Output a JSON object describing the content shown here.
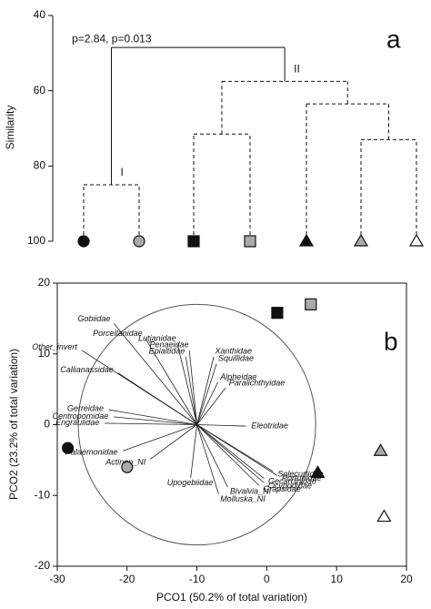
{
  "chart_data": [
    {
      "type": "dendrogram",
      "panel_label": "a",
      "y_label": "Similarity",
      "ylim": [
        40,
        100
      ],
      "y_inverted": true,
      "yticks": [
        40,
        60,
        80,
        100
      ],
      "leaves": [
        {
          "shape": "circle",
          "color": "#111111"
        },
        {
          "shape": "circle",
          "color": "#aaaaaa"
        },
        {
          "shape": "square",
          "color": "#111111"
        },
        {
          "shape": "square",
          "color": "#aaaaaa"
        },
        {
          "shape": "triangle",
          "color": "#111111"
        },
        {
          "shape": "triangle",
          "color": "#aaaaaa"
        },
        {
          "shape": "triangle",
          "color": "#ffffff"
        }
      ],
      "merges": [
        {
          "children": [
            0,
            1
          ],
          "height": 85,
          "label": "I",
          "style": "dashed"
        },
        {
          "children": [
            2,
            3
          ],
          "height": 71.5,
          "style": "dashed"
        },
        {
          "children": [
            5,
            6
          ],
          "height": 73,
          "style": "dashed"
        },
        {
          "children": [
            4,
            9
          ],
          "height": 63.5,
          "style": "dashed"
        },
        {
          "children": [
            8,
            10
          ],
          "height": 57.5,
          "label": "II",
          "style": "dashed"
        },
        {
          "children": [
            7,
            11
          ],
          "height": 48.5,
          "label": "p=2.84, p=0.013",
          "style": "solid"
        }
      ]
    },
    {
      "type": "biplot",
      "panel_label": "b",
      "x_label": "PCO1 (50.2% of total variation)",
      "y_label": "PCO2 (23.2% of total variation)",
      "xlim": [
        -30,
        20
      ],
      "ylim": [
        -20,
        20
      ],
      "xticks": [
        -30,
        -20,
        -10,
        0,
        10,
        20
      ],
      "yticks": [
        -20,
        -10,
        0,
        10,
        20
      ],
      "points": {
        "x": [
          -28.5,
          -20,
          1.5,
          6.3,
          7.3,
          16.3,
          16.8
        ],
        "y": [
          -3.3,
          -6,
          15.8,
          17,
          -6.8,
          -3.7,
          -13
        ],
        "shapes": [
          "circle",
          "circle",
          "square",
          "square",
          "triangle",
          "triangle",
          "triangle"
        ],
        "colors": [
          "#111111",
          "#aaaaaa",
          "#111111",
          "#aaaaaa",
          "#111111",
          "#aaaaaa",
          "#ffffff"
        ]
      },
      "vector_origin": [
        -10,
        0
      ],
      "circle_radius": 17,
      "vectors": [
        {
          "label": "Gobiidae",
          "x": -21.9,
          "y": 14.3
        },
        {
          "label": "Porcellanidae",
          "x": -17.4,
          "y": 12.2
        },
        {
          "label": "Lutjanidae",
          "x": -12.8,
          "y": 11.4
        },
        {
          "label": "Penaeidae",
          "x": -11.1,
          "y": 10.5
        },
        {
          "label": "Xanthidae",
          "x": -7.6,
          "y": 9.6
        },
        {
          "label": "Epialtidae",
          "x": -11.6,
          "y": 9.6
        },
        {
          "label": "Squillidae",
          "x": -7.2,
          "y": 8.6
        },
        {
          "label": "Other_invert",
          "x": -26.5,
          "y": 10.5
        },
        {
          "label": "Callianassidae",
          "x": -21.3,
          "y": 7.3
        },
        {
          "label": "Alpheidae",
          "x": -7,
          "y": 6
        },
        {
          "label": "Paralichthyidae",
          "x": -5.9,
          "y": 5.2
        },
        {
          "label": "Gerreidae",
          "x": -22.6,
          "y": 2.1
        },
        {
          "label": "Centropomidae",
          "x": -21.9,
          "y": 1.1
        },
        {
          "label": "Engraulidae",
          "x": -23.2,
          "y": 0.2
        },
        {
          "label": "Eleotridae",
          "x": -3,
          "y": -0.2
        },
        {
          "label": "Palaemonidae",
          "x": -20.6,
          "y": -3.7
        },
        {
          "label": "Actinop_NI",
          "x": -16.7,
          "y": -4.9
        },
        {
          "label": "Solecurtidae",
          "x": 0.9,
          "y": -6.6
        },
        {
          "label": "Portunidae",
          "x": 1.5,
          "y": -7.2
        },
        {
          "label": "Gecarcinidae",
          "x": -0.4,
          "y": -7.6
        },
        {
          "label": "Ocypodidae",
          "x": -0.4,
          "y": -8.2
        },
        {
          "label": "Grapsidae",
          "x": -1.1,
          "y": -8.6
        },
        {
          "label": "Upogebiidae",
          "x": -10.9,
          "y": -7.5
        },
        {
          "label": "Bivalvia_NI",
          "x": -5.6,
          "y": -8.8
        },
        {
          "label": "Molluska_NI",
          "x": -6.9,
          "y": -9.8
        }
      ]
    }
  ]
}
